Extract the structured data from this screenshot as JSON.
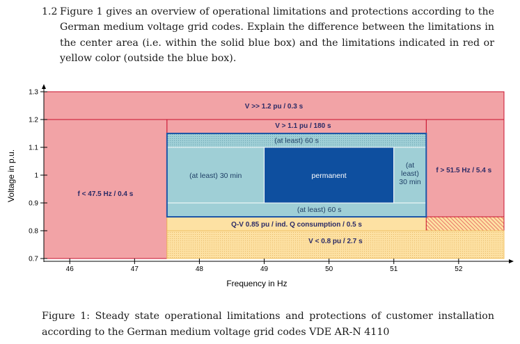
{
  "question": {
    "number": "1.2",
    "text": "Figure 1 gives an overview of operational limitations and protections according to the German medium voltage grid codes. Explain the difference between the limitations in the center area (i.e. within the solid blue box) and the limitations indicated in red or yellow color (outside the blue box)."
  },
  "figure": {
    "caption": "Figure 1: Steady state operational limitations and protections of customer installation according to the German medium voltage grid codes VDE AR-N 4110"
  },
  "colors": {
    "red_fill": "#f2a3a6",
    "red_dark_fill": "#ea7f86",
    "red_border": "#c8102e",
    "yellow_fill": "#fde1a3",
    "teal_fill": "#9fcfd6",
    "dark_blue": "#0e4f9f",
    "blue_border": "#1d56a6"
  },
  "chart_data": {
    "type": "region-diagram",
    "xlabel": "Frequency in Hz",
    "ylabel": "Voltage in p.u.",
    "xlim": [
      45.6,
      52.7
    ],
    "ylim": [
      0.69,
      1.305
    ],
    "xticks": [
      46,
      47,
      48,
      49,
      50,
      51,
      52
    ],
    "yticks": [
      0.7,
      0.8,
      0.9,
      1,
      1.1,
      1.2,
      1.3
    ],
    "xtick_labels": [
      "46",
      "47",
      "48",
      "49",
      "50",
      "51",
      "52"
    ],
    "ytick_labels": [
      "0.7",
      "0.8",
      "0.9",
      "1",
      "1.1",
      "1.2",
      "1.3"
    ],
    "regions": [
      {
        "name": "overvoltage-1-2",
        "f_range": [
          45.6,
          52.7
        ],
        "v_range": [
          1.2,
          1.3
        ],
        "style": "red",
        "label": "V >> 1.2 pu / 0.3 s",
        "label_at": [
          49.15,
          1.25
        ]
      },
      {
        "name": "low-frequency",
        "f_range": [
          45.6,
          47.5
        ],
        "v_range": [
          0.7,
          1.2
        ],
        "style": "red",
        "label": "f < 47.5 Hz / 0.4 s",
        "label_at": [
          46.55,
          0.935
        ]
      },
      {
        "name": "high-frequency",
        "f_range": [
          51.5,
          52.7
        ],
        "v_range": [
          0.85,
          1.2
        ],
        "style": "red",
        "label": "f > 51.5 Hz / 5.4 s",
        "label_at": [
          52.08,
          1.02
        ]
      },
      {
        "name": "overvoltage-1-1",
        "f_range": [
          47.5,
          51.5
        ],
        "v_range": [
          1.15,
          1.2
        ],
        "style": "red",
        "label": "V > 1.1 pu / 180 s",
        "label_at": [
          49.6,
          1.18
        ]
      },
      {
        "name": "at-least-60s-top",
        "f_range": [
          47.5,
          51.5
        ],
        "v_range": [
          1.1,
          1.15
        ],
        "style": "teal-dotted",
        "label": "(at least) 60 s",
        "label_at": [
          49.5,
          1.126
        ]
      },
      {
        "name": "at-least-30min",
        "f_range": [
          47.5,
          49.0
        ],
        "v_range": [
          0.9,
          1.1
        ],
        "style": "teal",
        "label": "(at least) 30 min",
        "label_at": [
          48.25,
          1.0
        ]
      },
      {
        "name": "permanent",
        "f_range": [
          49.0,
          51.0
        ],
        "v_range": [
          0.9,
          1.1
        ],
        "style": "dark-blue",
        "label": "permanent",
        "label_at": [
          50.0,
          1.0
        ]
      },
      {
        "name": "at-least-30min-right",
        "f_range": [
          51.0,
          51.5
        ],
        "v_range": [
          0.9,
          1.1
        ],
        "style": "teal",
        "label_lines": [
          "(at",
          "least)",
          "30 min"
        ],
        "label_at": [
          51.25,
          1.0
        ]
      },
      {
        "name": "at-least-60s-bottom",
        "f_range": [
          47.5,
          51.5
        ],
        "v_range": [
          0.85,
          0.9
        ],
        "style": "teal",
        "label": "(at least) 60 s",
        "label_at": [
          49.85,
          0.877
        ]
      },
      {
        "name": "q-v-protection",
        "f_range": [
          47.5,
          51.5
        ],
        "v_range": [
          0.8,
          0.85
        ],
        "style": "yellow",
        "label": "Q-V 0.85 pu / ind. Q consumption / 0.5 s",
        "label_at": [
          49.5,
          0.825
        ]
      },
      {
        "name": "q-v-hatched",
        "f_range": [
          51.5,
          52.7
        ],
        "v_range": [
          0.8,
          0.85
        ],
        "style": "red-hatched",
        "label": "",
        "label_at": [
          52.1,
          0.825
        ]
      },
      {
        "name": "undervoltage",
        "f_range": [
          47.5,
          52.7
        ],
        "v_range": [
          0.7,
          0.8
        ],
        "style": "yellow-dotted",
        "label": "V < 0.8 pu / 2.7 s",
        "label_at": [
          50.1,
          0.765
        ]
      }
    ],
    "solid_blue_box": {
      "f_range": [
        47.5,
        51.5
      ],
      "v_range": [
        0.85,
        1.15
      ]
    }
  }
}
